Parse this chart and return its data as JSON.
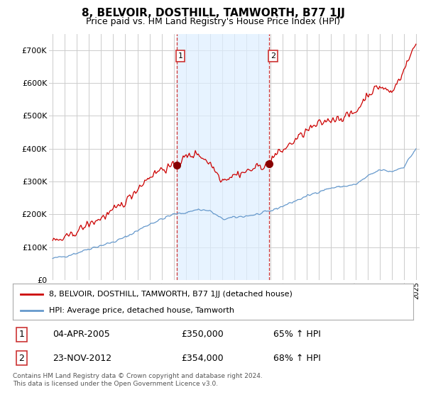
{
  "title": "8, BELVOIR, DOSTHILL, TAMWORTH, B77 1JJ",
  "subtitle": "Price paid vs. HM Land Registry's House Price Index (HPI)",
  "red_label": "8, BELVOIR, DOSTHILL, TAMWORTH, B77 1JJ (detached house)",
  "blue_label": "HPI: Average price, detached house, Tamworth",
  "annotation1_date": "04-APR-2005",
  "annotation1_price": "£350,000",
  "annotation1_hpi": "65% ↑ HPI",
  "annotation1_year": 2005.25,
  "annotation1_value": 350000,
  "annotation2_date": "23-NOV-2012",
  "annotation2_price": "£354,000",
  "annotation2_hpi": "68% ↑ HPI",
  "annotation2_year": 2012.9,
  "annotation2_value": 354000,
  "footer": "Contains HM Land Registry data © Crown copyright and database right 2024.\nThis data is licensed under the Open Government Licence v3.0.",
  "ylim": [
    0,
    750000
  ],
  "yticks": [
    0,
    100000,
    200000,
    300000,
    400000,
    500000,
    600000,
    700000
  ],
  "ytick_labels": [
    "£0",
    "£100K",
    "£200K",
    "£300K",
    "£400K",
    "£500K",
    "£600K",
    "£700K"
  ],
  "red_color": "#cc0000",
  "blue_color": "#6699cc",
  "background_color": "#ffffff",
  "grid_color": "#cccccc",
  "vline_color": "#cc3333",
  "shade_color": "#ddeeff",
  "vline_x1": 2005.25,
  "vline_x2": 2012.9
}
